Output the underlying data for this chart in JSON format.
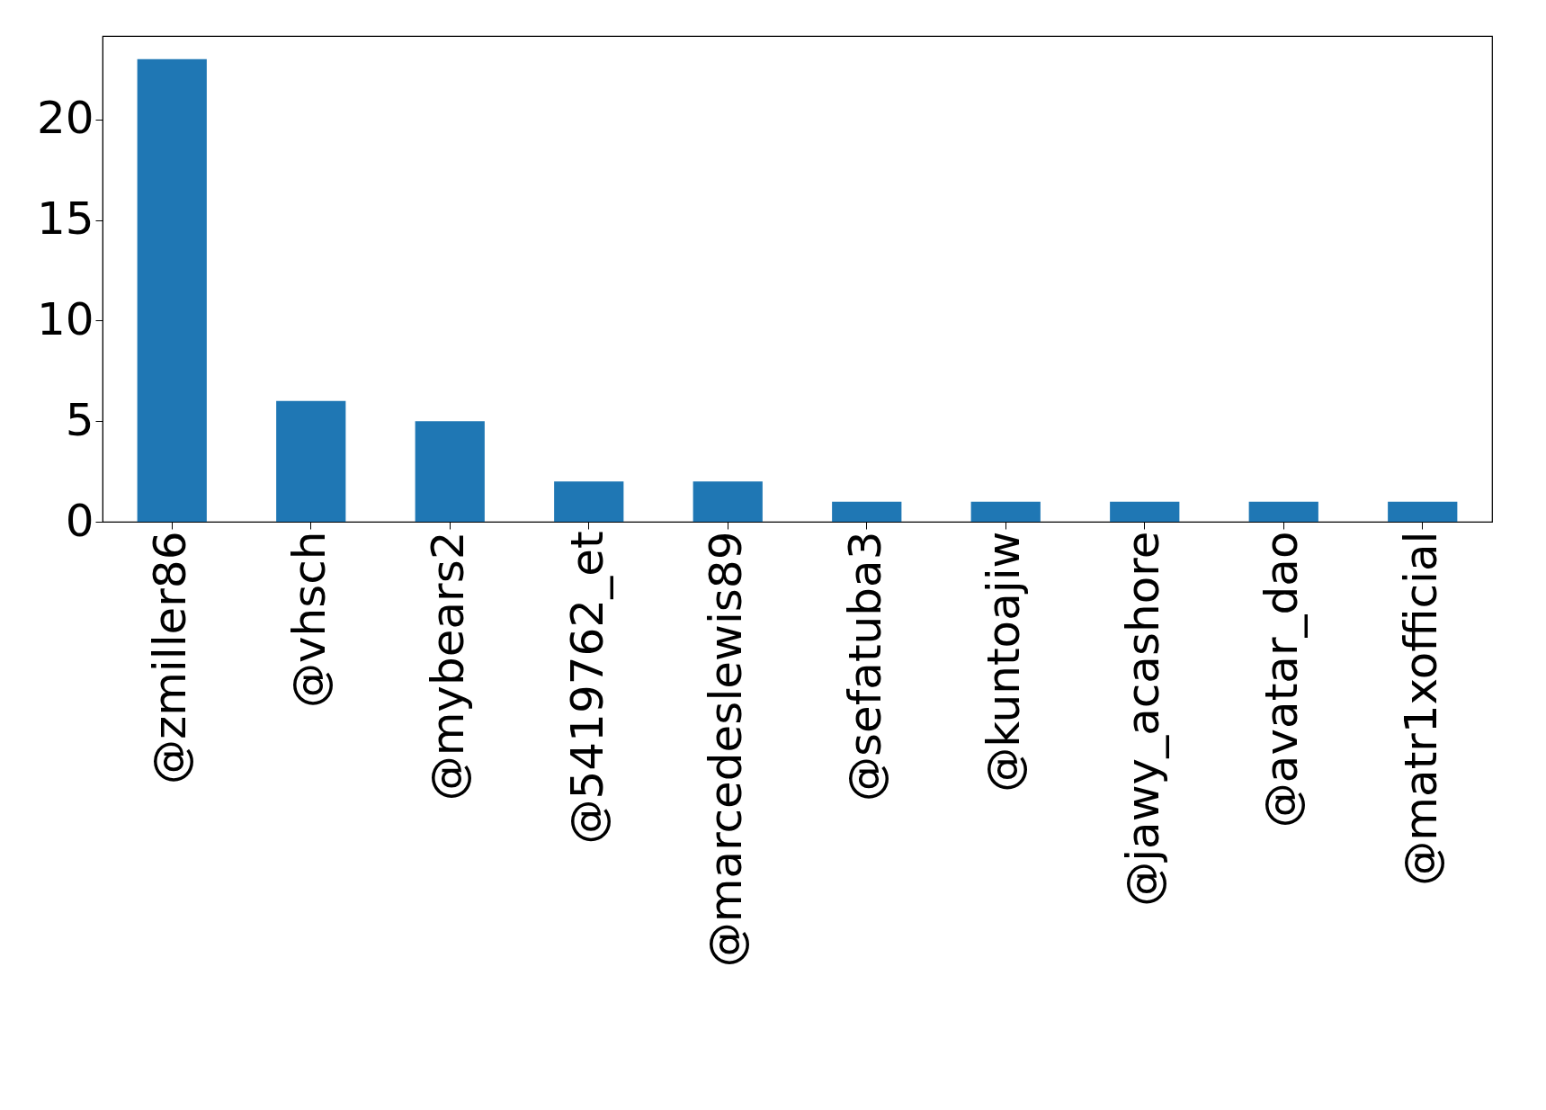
{
  "chart_data": {
    "type": "bar",
    "categories": [
      "@zmiller86",
      "@vhsch",
      "@mybears2",
      "@5419762_et",
      "@marcedeslewis89",
      "@sefatuba3",
      "@kuntoajiw",
      "@jawy_acashore",
      "@avatar_dao",
      "@matr1xofficial"
    ],
    "values": [
      23,
      6,
      5,
      2,
      2,
      1,
      1,
      1,
      1,
      1
    ],
    "color": "#1f77b4",
    "ylim": [
      0,
      24.15
    ],
    "yticks": [
      0,
      5,
      10,
      15,
      20
    ],
    "grid": false
  }
}
